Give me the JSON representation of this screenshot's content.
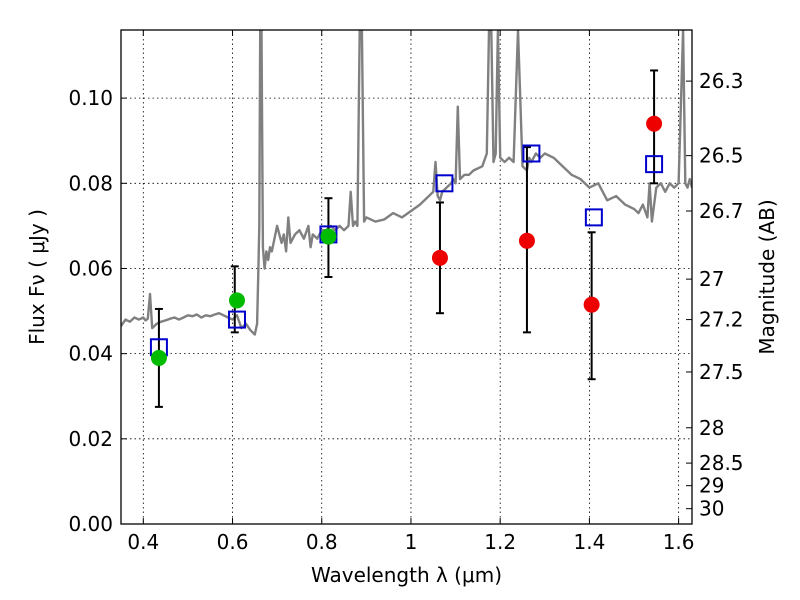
{
  "chart_data": {
    "type": "scatter",
    "xlabel": "Wavelength  λ (μm)",
    "ylabel": "Flux  Fν  ( μJy )",
    "ylabel_right": "Magnitude (AB)",
    "xlim": [
      0.35,
      1.63
    ],
    "ylim": [
      0.0,
      0.116
    ],
    "grid": true,
    "x_ticks": [
      0.4,
      0.6,
      0.8,
      1.0,
      1.2,
      1.4,
      1.6
    ],
    "x_tick_labels": [
      "0.4",
      "0.6",
      "0.8",
      "1",
      "1.2",
      "1.4",
      "1.6"
    ],
    "y_ticks": [
      0.0,
      0.02,
      0.04,
      0.06,
      0.08,
      0.1
    ],
    "y_tick_labels": [
      "0.00",
      "0.02",
      "0.04",
      "0.06",
      "0.08",
      "0.10"
    ],
    "right_ticks": [
      {
        "flux": 0.104,
        "label": "26.3"
      },
      {
        "flux": 0.0865,
        "label": "26.5"
      },
      {
        "flux": 0.0735,
        "label": "26.7"
      },
      {
        "flux": 0.0575,
        "label": "27"
      },
      {
        "flux": 0.048,
        "label": "27.2"
      },
      {
        "flux": 0.0357,
        "label": "27.5"
      },
      {
        "flux": 0.0226,
        "label": "28"
      },
      {
        "flux": 0.0143,
        "label": "28.5"
      },
      {
        "flux": 0.009,
        "label": "29"
      },
      {
        "flux": 0.0036,
        "label": "30"
      }
    ],
    "series": [
      {
        "kind": "spectrum",
        "color": "#808080",
        "x": [
          0.35,
          0.36,
          0.37,
          0.38,
          0.39,
          0.4,
          0.405,
          0.41,
          0.415,
          0.42,
          0.43,
          0.44,
          0.45,
          0.46,
          0.47,
          0.48,
          0.49,
          0.5,
          0.51,
          0.52,
          0.53,
          0.54,
          0.55,
          0.56,
          0.57,
          0.58,
          0.59,
          0.6,
          0.61,
          0.62,
          0.63,
          0.64,
          0.645,
          0.65,
          0.655,
          0.658,
          0.66,
          0.662,
          0.665,
          0.668,
          0.672,
          0.676,
          0.68,
          0.684,
          0.688,
          0.69,
          0.7,
          0.71,
          0.715,
          0.72,
          0.725,
          0.73,
          0.74,
          0.75,
          0.76,
          0.77,
          0.775,
          0.78,
          0.79,
          0.8,
          0.81,
          0.82,
          0.83,
          0.84,
          0.85,
          0.86,
          0.865,
          0.87,
          0.875,
          0.88,
          0.885,
          0.89,
          0.895,
          0.9,
          0.92,
          0.94,
          0.96,
          0.98,
          1.0,
          1.02,
          1.04,
          1.05,
          1.055,
          1.06,
          1.065,
          1.07,
          1.08,
          1.09,
          1.095,
          1.1,
          1.105,
          1.11,
          1.12,
          1.13,
          1.14,
          1.16,
          1.17,
          1.175,
          1.18,
          1.185,
          1.19,
          1.195,
          1.2,
          1.21,
          1.22,
          1.23,
          1.24,
          1.25,
          1.26,
          1.265,
          1.27,
          1.275,
          1.28,
          1.29,
          1.3,
          1.32,
          1.34,
          1.36,
          1.38,
          1.4,
          1.42,
          1.44,
          1.46,
          1.48,
          1.5,
          1.51,
          1.52,
          1.53,
          1.535,
          1.54,
          1.545,
          1.55,
          1.56,
          1.57,
          1.58,
          1.59,
          1.6,
          1.61,
          1.615,
          1.62,
          1.625,
          1.63
        ],
        "y": [
          0.0465,
          0.048,
          0.0475,
          0.0485,
          0.048,
          0.0485,
          0.0478,
          0.0482,
          0.054,
          0.046,
          0.047,
          0.0475,
          0.0478,
          0.0482,
          0.0485,
          0.048,
          0.0485,
          0.049,
          0.0488,
          0.0492,
          0.0485,
          0.049,
          0.0488,
          0.0492,
          0.0495,
          0.049,
          0.0485,
          0.048,
          0.049,
          0.046,
          0.047,
          0.0455,
          0.045,
          0.0445,
          0.047,
          0.06,
          0.07,
          0.116,
          0.116,
          0.065,
          0.06,
          0.064,
          0.062,
          0.065,
          0.064,
          0.065,
          0.07,
          0.066,
          0.068,
          0.064,
          0.072,
          0.066,
          0.068,
          0.069,
          0.067,
          0.07,
          0.065,
          0.068,
          0.067,
          0.069,
          0.069,
          0.07,
          0.069,
          0.07,
          0.069,
          0.07,
          0.078,
          0.07,
          0.071,
          0.07,
          0.116,
          0.116,
          0.071,
          0.072,
          0.071,
          0.0715,
          0.073,
          0.072,
          0.0735,
          0.075,
          0.077,
          0.078,
          0.085,
          0.077,
          0.076,
          0.078,
          0.079,
          0.08,
          0.081,
          0.08,
          0.098,
          0.081,
          0.082,
          0.082,
          0.083,
          0.084,
          0.087,
          0.116,
          0.116,
          0.085,
          0.087,
          0.116,
          0.086,
          0.085,
          0.086,
          0.085,
          0.116,
          0.084,
          0.083,
          0.086,
          0.085,
          0.086,
          0.087,
          0.086,
          0.087,
          0.086,
          0.084,
          0.082,
          0.081,
          0.079,
          0.08,
          0.076,
          0.077,
          0.075,
          0.074,
          0.073,
          0.075,
          0.072,
          0.08,
          0.071,
          0.075,
          0.079,
          0.08,
          0.078,
          0.08,
          0.079,
          0.08,
          0.116,
          0.08,
          0.079,
          0.081,
          0.079
        ]
      },
      {
        "kind": "error_bars",
        "color": "#000000",
        "x": [
          0.435,
          0.605,
          0.815,
          1.065,
          1.26,
          1.405,
          1.545
        ],
        "y_low": [
          0.0275,
          0.045,
          0.058,
          0.0495,
          0.045,
          0.034,
          0.08
        ],
        "y_high": [
          0.0505,
          0.0605,
          0.0765,
          0.0755,
          0.0885,
          0.0685,
          0.1065
        ]
      },
      {
        "kind": "squares",
        "color": "#0000cc",
        "x": [
          0.435,
          0.61,
          0.815,
          1.075,
          1.27,
          1.41,
          1.545
        ],
        "y": [
          0.0415,
          0.048,
          0.068,
          0.08,
          0.087,
          0.072,
          0.0845
        ]
      },
      {
        "kind": "green_points",
        "color": "#00bb00",
        "x": [
          0.435,
          0.61,
          0.815
        ],
        "y": [
          0.039,
          0.0525,
          0.0675
        ]
      },
      {
        "kind": "red_points",
        "color": "#ee0000",
        "x": [
          1.065,
          1.26,
          1.405,
          1.545
        ],
        "y": [
          0.0625,
          0.0665,
          0.0515,
          0.094
        ]
      }
    ]
  }
}
